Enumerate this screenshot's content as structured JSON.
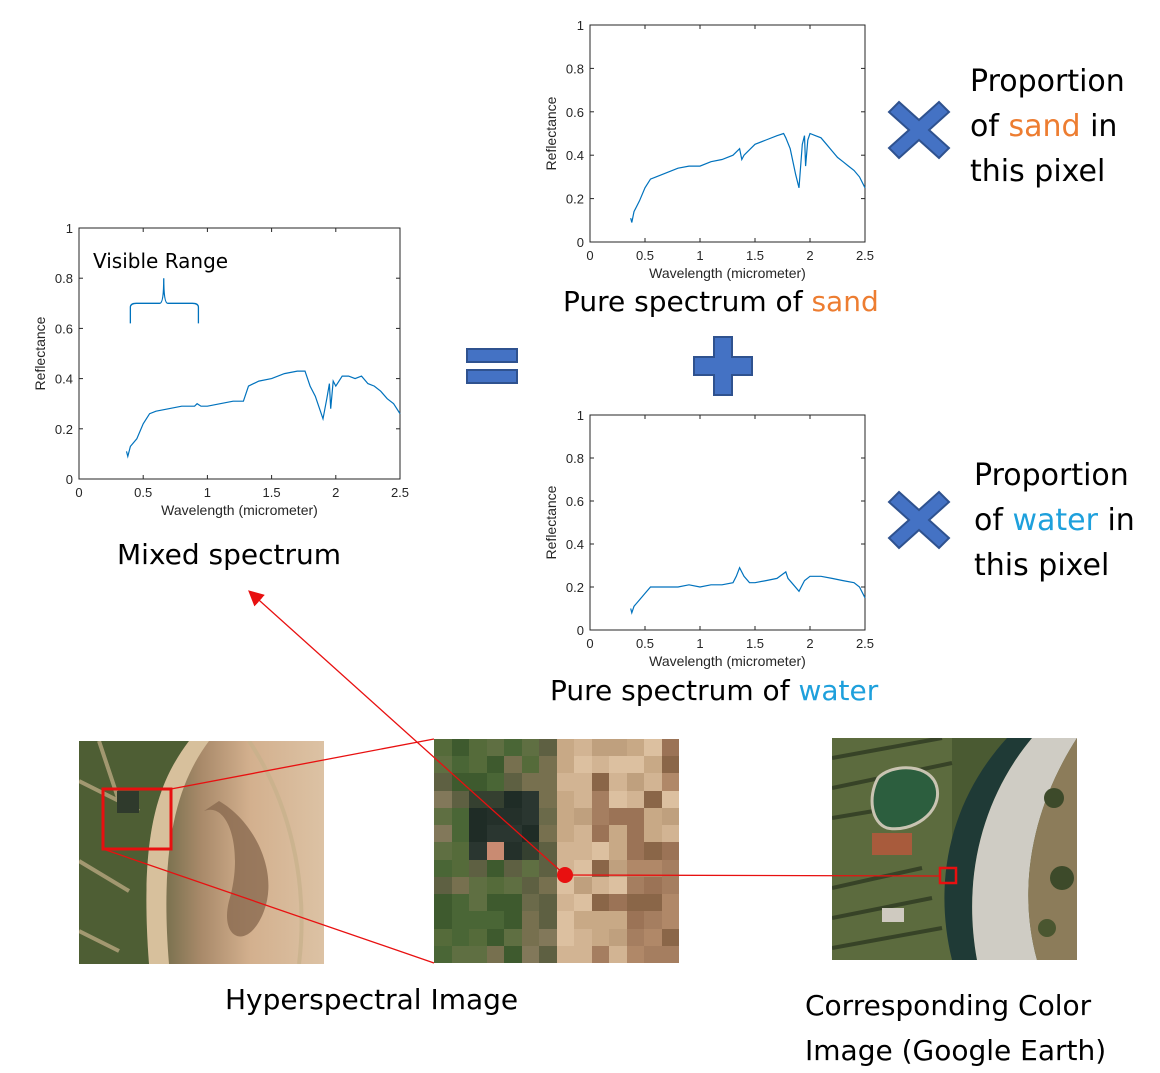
{
  "chart_data": [
    {
      "type": "line",
      "id": "mixed",
      "title": "",
      "xlabel": "Wavelength (micrometer)",
      "ylabel": "Reflectance",
      "xlim": [
        0,
        2.5
      ],
      "ylim": [
        0,
        1
      ],
      "xticks": [
        "0",
        "0.5",
        "1",
        "1.5",
        "2",
        "2.5"
      ],
      "yticks": [
        "0",
        "0.2",
        "0.4",
        "0.6",
        "0.8",
        "1"
      ],
      "annotation": "Visible Range",
      "x": [
        0.37,
        0.38,
        0.4,
        0.45,
        0.5,
        0.55,
        0.6,
        0.7,
        0.8,
        0.9,
        0.92,
        0.95,
        1.0,
        1.1,
        1.2,
        1.28,
        1.32,
        1.36,
        1.4,
        1.5,
        1.6,
        1.7,
        1.76,
        1.8,
        1.84,
        1.88,
        1.9,
        1.93,
        1.95,
        1.96,
        1.98,
        2.0,
        2.05,
        2.1,
        2.15,
        2.2,
        2.25,
        2.3,
        2.35,
        2.4,
        2.45,
        2.5
      ],
      "y": [
        0.11,
        0.09,
        0.13,
        0.16,
        0.22,
        0.26,
        0.27,
        0.28,
        0.29,
        0.29,
        0.3,
        0.29,
        0.29,
        0.3,
        0.31,
        0.31,
        0.37,
        0.38,
        0.39,
        0.4,
        0.42,
        0.43,
        0.43,
        0.37,
        0.33,
        0.27,
        0.24,
        0.32,
        0.38,
        0.28,
        0.39,
        0.37,
        0.41,
        0.41,
        0.4,
        0.41,
        0.38,
        0.37,
        0.35,
        0.32,
        0.3,
        0.26
      ],
      "series": [
        {
          "color": "#0072bd"
        }
      ]
    },
    {
      "type": "line",
      "id": "sand",
      "title": "",
      "xlabel": "Wavelength (micrometer)",
      "ylabel": "Reflectance",
      "xlim": [
        0,
        2.5
      ],
      "ylim": [
        0,
        1
      ],
      "xticks": [
        "0",
        "0.5",
        "1",
        "1.5",
        "2",
        "2.5"
      ],
      "yticks": [
        "0",
        "0.2",
        "0.4",
        "0.6",
        "0.8",
        "1"
      ],
      "x": [
        0.37,
        0.38,
        0.4,
        0.45,
        0.5,
        0.55,
        0.6,
        0.7,
        0.8,
        0.9,
        1.0,
        1.1,
        1.2,
        1.3,
        1.36,
        1.38,
        1.4,
        1.5,
        1.6,
        1.7,
        1.76,
        1.78,
        1.82,
        1.87,
        1.9,
        1.93,
        1.95,
        1.96,
        1.98,
        2.0,
        2.05,
        2.1,
        2.15,
        2.2,
        2.25,
        2.3,
        2.35,
        2.4,
        2.45,
        2.5
      ],
      "y": [
        0.11,
        0.09,
        0.14,
        0.19,
        0.25,
        0.29,
        0.3,
        0.32,
        0.34,
        0.35,
        0.35,
        0.37,
        0.38,
        0.4,
        0.43,
        0.38,
        0.4,
        0.45,
        0.47,
        0.49,
        0.5,
        0.48,
        0.43,
        0.31,
        0.25,
        0.45,
        0.49,
        0.35,
        0.47,
        0.5,
        0.49,
        0.48,
        0.45,
        0.42,
        0.39,
        0.37,
        0.35,
        0.33,
        0.3,
        0.25
      ],
      "series": [
        {
          "color": "#0072bd"
        }
      ]
    },
    {
      "type": "line",
      "id": "water",
      "title": "",
      "xlabel": "Wavelength (micrometer)",
      "ylabel": "Reflectance",
      "xlim": [
        0,
        2.5
      ],
      "ylim": [
        0,
        1
      ],
      "xticks": [
        "0",
        "0.5",
        "1",
        "1.5",
        "2",
        "2.5"
      ],
      "yticks": [
        "0",
        "0.2",
        "0.4",
        "0.6",
        "0.8",
        "1"
      ],
      "x": [
        0.37,
        0.38,
        0.4,
        0.45,
        0.5,
        0.55,
        0.6,
        0.7,
        0.8,
        0.9,
        1.0,
        1.1,
        1.2,
        1.3,
        1.33,
        1.36,
        1.4,
        1.45,
        1.5,
        1.6,
        1.7,
        1.78,
        1.8,
        1.85,
        1.9,
        1.95,
        2.0,
        2.05,
        2.1,
        2.2,
        2.3,
        2.4,
        2.45,
        2.5
      ],
      "y": [
        0.1,
        0.08,
        0.11,
        0.14,
        0.17,
        0.2,
        0.2,
        0.2,
        0.2,
        0.21,
        0.2,
        0.21,
        0.21,
        0.22,
        0.25,
        0.29,
        0.25,
        0.22,
        0.22,
        0.23,
        0.24,
        0.27,
        0.24,
        0.21,
        0.18,
        0.23,
        0.25,
        0.25,
        0.25,
        0.24,
        0.23,
        0.22,
        0.2,
        0.15
      ],
      "series": [
        {
          "color": "#0072bd"
        }
      ]
    }
  ],
  "captions": {
    "mixed": "Mixed spectrum",
    "sand_prefix": "Pure spectrum of ",
    "sand_word": "sand",
    "water_prefix": "Pure spectrum of ",
    "water_word": "water",
    "hyperspectral": "Hyperspectral Image",
    "color_line1": "Corresponding Color",
    "color_line2": "Image (Google Earth)"
  },
  "proportion_sand": {
    "line1": "Proportion",
    "line2_prefix": "of ",
    "line2_word": "sand",
    "line2_suffix": " in",
    "line3": "this pixel"
  },
  "proportion_water": {
    "line1": "Proportion",
    "line2_prefix": "of ",
    "line2_word": "water",
    "line2_suffix": " in",
    "line3": "this pixel"
  },
  "colors": {
    "operator_fill": "#4472c4",
    "operator_stroke": "#2f528f",
    "sand_text": "#ed7d31",
    "water_text": "#1ea0dc",
    "spectrum_line": "#0072bd",
    "link_red": "#e81010"
  }
}
